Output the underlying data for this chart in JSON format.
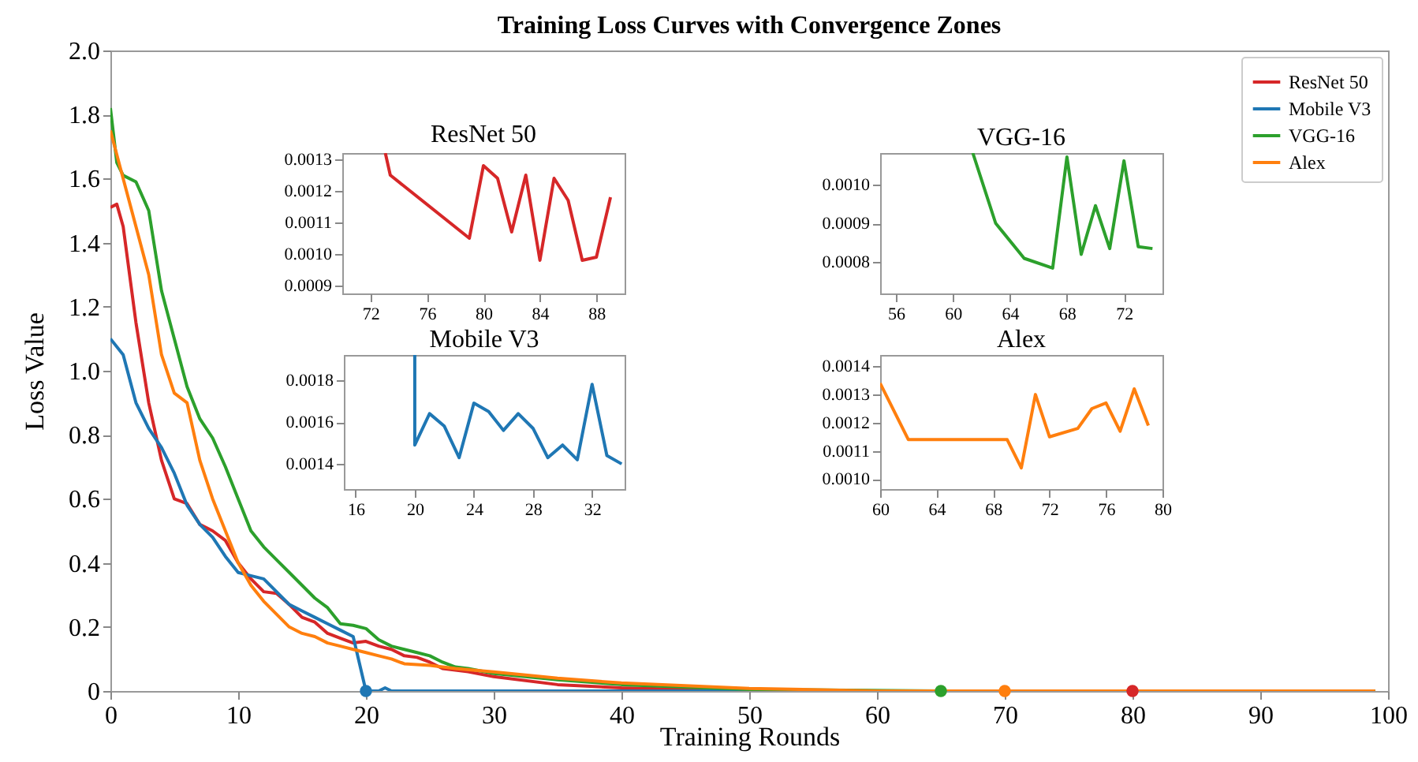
{
  "chart_data": [
    {
      "type": "line",
      "title": "Training Loss Curves with Convergence Zones",
      "xlabel": "Training Rounds",
      "ylabel": "Loss Value",
      "xlim": [
        0,
        100
      ],
      "ylim": [
        0,
        2
      ],
      "xticks": [
        0,
        10,
        20,
        30,
        40,
        50,
        60,
        70,
        80,
        90,
        100
      ],
      "yticks": [
        0,
        0.2,
        0.4,
        0.6,
        0.8,
        {
          "value": 1,
          "label": "1.0"
        },
        1.2,
        1.4,
        1.6,
        1.8,
        {
          "value": 2,
          "label": "2.0"
        }
      ],
      "legend": "top right",
      "series": [
        {
          "name": "ResNet 50",
          "color": "#d62728",
          "x": [
            0,
            0.5,
            1,
            2,
            3,
            4,
            5,
            6,
            7,
            8,
            9,
            10,
            11,
            12,
            13,
            14,
            15,
            16,
            17,
            18,
            19,
            20,
            21,
            22,
            23,
            24,
            25,
            26,
            28,
            30,
            35,
            40,
            50,
            60,
            70,
            80,
            99
          ],
          "values": [
            1.51,
            1.52,
            1.45,
            1.15,
            0.9,
            0.72,
            0.6,
            0.585,
            0.52,
            0.5,
            0.47,
            0.4,
            0.35,
            0.31,
            0.305,
            0.27,
            0.23,
            0.215,
            0.18,
            0.165,
            0.15,
            0.155,
            0.14,
            0.13,
            0.11,
            0.105,
            0.09,
            0.07,
            0.06,
            0.045,
            0.02,
            0.01,
            0,
            0,
            0,
            0,
            0
          ]
        },
        {
          "name": "Mobile V3",
          "color": "#1f77b4",
          "x": [
            0,
            1,
            2,
            3,
            4,
            5,
            6,
            7,
            8,
            9,
            10,
            11,
            12,
            13,
            14,
            15,
            16,
            17,
            18,
            19,
            20,
            21,
            21.5,
            22,
            30,
            99
          ],
          "values": [
            1.1,
            1.05,
            0.9,
            0.82,
            0.76,
            0.68,
            0.58,
            0.52,
            0.48,
            0.42,
            0.37,
            0.36,
            0.35,
            0.31,
            0.27,
            0.25,
            0.23,
            0.21,
            0.19,
            0.17,
            0,
            0,
            0.01,
            0,
            0,
            0
          ]
        },
        {
          "name": "VGG-16",
          "color": "#2ca02c",
          "x": [
            0,
            0.5,
            1,
            2,
            3,
            4,
            5,
            6,
            7,
            8,
            9,
            10,
            11,
            12,
            13,
            14,
            15,
            16,
            17,
            18,
            19,
            20,
            21,
            22,
            23,
            24,
            25,
            26,
            27,
            28,
            30,
            35,
            40,
            50,
            65,
            99
          ],
          "values": [
            1.82,
            1.65,
            1.61,
            1.59,
            1.5,
            1.25,
            1.1,
            0.95,
            0.85,
            0.79,
            0.7,
            0.6,
            0.5,
            0.45,
            0.41,
            0.37,
            0.33,
            0.29,
            0.26,
            0.21,
            0.205,
            0.195,
            0.16,
            0.14,
            0.13,
            0.12,
            0.11,
            0.09,
            0.075,
            0.07,
            0.055,
            0.035,
            0.02,
            0.005,
            0,
            0
          ]
        },
        {
          "name": "Alex",
          "color": "#ff7f0e",
          "x": [
            0,
            1,
            2,
            3,
            4,
            5,
            6,
            7,
            8,
            9,
            10,
            11,
            12,
            13,
            14,
            15,
            16,
            17,
            18,
            19,
            20,
            21,
            22,
            23,
            25,
            27,
            30,
            35,
            40,
            50,
            60,
            70,
            99
          ],
          "values": [
            1.75,
            1.6,
            1.45,
            1.3,
            1.05,
            0.93,
            0.9,
            0.72,
            0.6,
            0.5,
            0.4,
            0.33,
            0.28,
            0.24,
            0.2,
            0.18,
            0.17,
            0.15,
            0.14,
            0.13,
            0.12,
            0.11,
            0.1,
            0.085,
            0.08,
            0.07,
            0.06,
            0.04,
            0.025,
            0.008,
            0,
            0,
            0
          ]
        },
        {
          "type": "scatter",
          "x": [
            20,
            65,
            70,
            80
          ],
          "values": [
            0,
            0,
            0,
            0
          ],
          "colors": [
            "#1f77b4",
            "#2ca02c",
            "#ff7f0e",
            "#d62728"
          ]
        }
      ]
    },
    {
      "type": "line",
      "title": "ResNet 50",
      "xlim": [
        70,
        90
      ],
      "ylim": [
        0.000875,
        0.00132
      ],
      "xticks": [
        72,
        76,
        80,
        84,
        88
      ],
      "yticks": [
        {
          "value": 0.0009,
          "label": "0.0009"
        },
        {
          "value": 0.001,
          "label": "0.0010"
        },
        {
          "value": 0.0011,
          "label": "0.0011"
        },
        {
          "value": 0.0012,
          "label": "0.0012"
        },
        {
          "value": 0.0013,
          "label": "0.0013"
        }
      ],
      "series": [
        {
          "color": "#d62728",
          "x": [
            73.05,
            73.4,
            79,
            80,
            81,
            82,
            83,
            84,
            85,
            86,
            87,
            88,
            89
          ],
          "values": [
            0.00132,
            0.00125,
            0.00105,
            0.00128,
            0.00124,
            0.00107,
            0.00125,
            0.00098,
            0.00124,
            0.00117,
            0.00098,
            0.00099,
            0.00118
          ]
        }
      ]
    },
    {
      "type": "line",
      "title": "Mobile V3",
      "xlim": [
        15.2,
        34.2
      ],
      "ylim": [
        0.00128,
        0.00192
      ],
      "xticks": [
        16,
        20,
        24,
        28,
        32
      ],
      "yticks": [
        {
          "value": 0.0014,
          "label": "0.0014"
        },
        {
          "value": 0.0016,
          "label": "0.0016"
        },
        {
          "value": 0.0018,
          "label": "0.0018"
        }
      ],
      "series": [
        {
          "color": "#1f77b4",
          "x": [
            20,
            20,
            21,
            22,
            23,
            24,
            25,
            26,
            27,
            28,
            29,
            30,
            31,
            32,
            33,
            34
          ],
          "values": [
            0.00192,
            0.00149,
            0.00164,
            0.00158,
            0.00143,
            0.00169,
            0.00165,
            0.00156,
            0.00164,
            0.00157,
            0.00143,
            0.00149,
            0.00142,
            0.00178,
            0.00144,
            0.0014
          ]
        }
      ]
    },
    {
      "type": "line",
      "title": "VGG-16",
      "xlim": [
        54.9,
        74.7
      ],
      "ylim": [
        0.00072,
        0.00108
      ],
      "xticks": [
        56,
        60,
        64,
        68,
        72
      ],
      "yticks": [
        {
          "value": 0.0008,
          "label": "0.0008"
        },
        {
          "value": 0.0009,
          "label": "0.0009"
        },
        {
          "value": 0.001,
          "label": "0.0010"
        }
      ],
      "series": [
        {
          "color": "#2ca02c",
          "x": [
            61.4,
            63,
            65,
            67,
            68,
            69,
            70,
            71,
            72,
            73,
            74
          ],
          "values": [
            0.00108,
            0.0009,
            0.00081,
            0.000785,
            0.00107,
            0.00082,
            0.000945,
            0.000835,
            0.00106,
            0.00084,
            0.000835
          ]
        }
      ]
    },
    {
      "type": "line",
      "title": "Alex",
      "xlim": [
        60,
        80
      ],
      "ylim": [
        0.000965,
        0.00144
      ],
      "xticks": [
        60,
        64,
        68,
        72,
        76,
        80
      ],
      "yticks": [
        {
          "value": 0.001,
          "label": "0.0010"
        },
        {
          "value": 0.0011,
          "label": "0.0011"
        },
        {
          "value": 0.0012,
          "label": "0.0012"
        },
        {
          "value": 0.0013,
          "label": "0.0013"
        },
        {
          "value": 0.0014,
          "label": "0.0014"
        }
      ],
      "series": [
        {
          "color": "#ff7f0e",
          "x": [
            60,
            62,
            69,
            70,
            71,
            72,
            74,
            75,
            76,
            77,
            78,
            79
          ],
          "values": [
            0.00134,
            0.00114,
            0.00114,
            0.00104,
            0.0013,
            0.00115,
            0.00118,
            0.00125,
            0.00127,
            0.00117,
            0.00132,
            0.00119
          ]
        }
      ]
    }
  ]
}
